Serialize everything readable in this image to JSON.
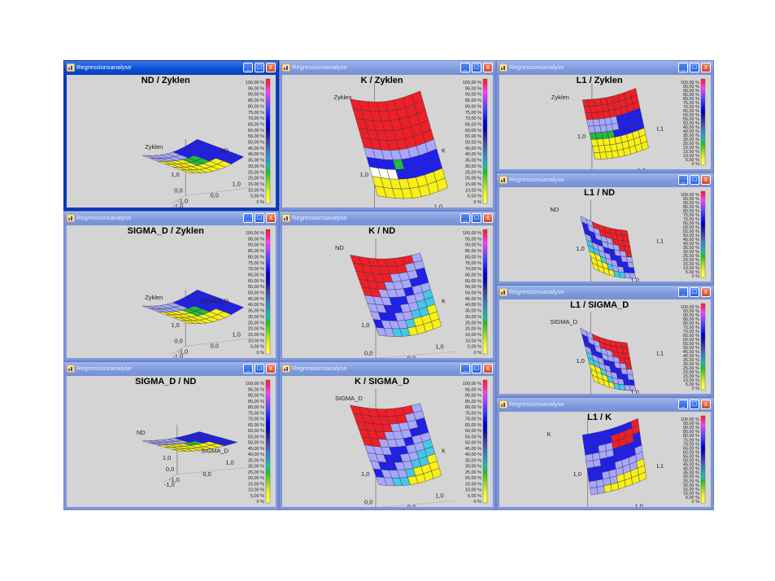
{
  "window_title": "Regressionsanalyse",
  "titlebar_buttons": {
    "minimize": "_",
    "maximize": "□",
    "close": "x"
  },
  "legend_labels": [
    "100,00 %",
    "95,00 %",
    "90,00 %",
    "85,00 %",
    "80,00 %",
    "75,00 %",
    "70,00 %",
    "65,00 %",
    "60,00 %",
    "55,00 %",
    "50,00 %",
    "45,00 %",
    "40,00 %",
    "35,00 %",
    "30,00 %",
    "25,00 %",
    "20,00 %",
    "15,00 %",
    "10,00 %",
    "5,00 %",
    "0 %"
  ],
  "legend_colors": [
    "#ff2020",
    "#ff2080",
    "#ff40ff",
    "#c040ff",
    "#8040ff",
    "#4040ff",
    "#2020ff",
    "#0000e0",
    "#0000c0",
    "#2020a0",
    "#4040a0",
    "#4060c0",
    "#4080c0",
    "#20a0c0",
    "#20c0a0",
    "#20c020",
    "#60d020",
    "#a0e020",
    "#e0f020",
    "#ffff20",
    "#ffff80"
  ],
  "surface_palette": {
    "red": "#ee1f28",
    "lavender": "#a7a7ff",
    "blue": "#1f1fee",
    "white": "#ffffff",
    "green": "#22bb3f",
    "yellow": "#f8f018",
    "cyan": "#44c8e8"
  },
  "ticks": {
    "one": "1,0",
    "zero": "0,0",
    "minus": "-1,0"
  },
  "plots": [
    {
      "title": "ND / Zyklen",
      "zlabel": "Zyklen",
      "xlabel": "ND",
      "mode": "flat"
    },
    {
      "title": "K / Zyklen",
      "zlabel": "Zyklen",
      "xlabel": "K",
      "mode": "tall1"
    },
    {
      "title": "L1 / Zyklen",
      "zlabel": "Zyklen",
      "xlabel": "L1",
      "mode": "small1"
    },
    {
      "title": "SIGMA_D / Zyklen",
      "zlabel": "Zyklen",
      "xlabel": "SIGMA_D",
      "mode": "flat"
    },
    {
      "title": "K / ND",
      "zlabel": "ND",
      "xlabel": "K",
      "mode": "tall2"
    },
    {
      "title": "L1 / ND",
      "zlabel": "ND",
      "xlabel": "L1",
      "mode": "small2"
    },
    {
      "title": "SIGMA_D / ND",
      "zlabel": "ND",
      "xlabel": "SIGMA_D",
      "mode": "veryflat"
    },
    {
      "title": "K / SIGMA_D",
      "zlabel": "SIGMA_D",
      "xlabel": "K",
      "mode": "tall3"
    },
    {
      "title": "L1 / SIGMA_D",
      "zlabel": "SIGMA_D",
      "xlabel": "L1",
      "mode": "small2"
    },
    {
      "title": "L1 / K",
      "zlabel": "K",
      "xlabel": "L1",
      "mode": "small3"
    }
  ]
}
